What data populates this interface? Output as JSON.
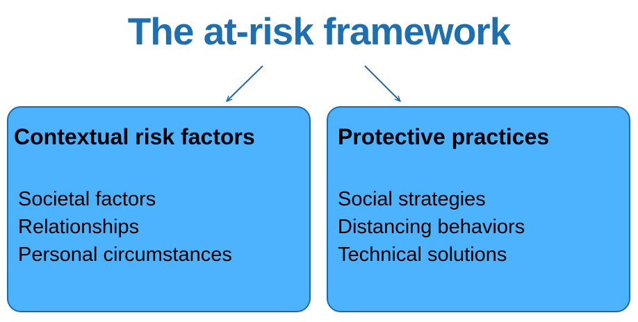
{
  "title": "The at-risk framework",
  "colors": {
    "title": "#1e6fb0",
    "box_fill": "#4db3ff",
    "box_border": "#1d6aa8",
    "arrow": "#1d6aa8"
  },
  "boxes": [
    {
      "heading": "Contextual risk factors",
      "items": [
        "Societal factors",
        "Relationships",
        "Personal circumstances"
      ]
    },
    {
      "heading": "Protective practices",
      "items": [
        "Social strategies",
        "Distancing behaviors",
        "Technical solutions"
      ]
    }
  ]
}
